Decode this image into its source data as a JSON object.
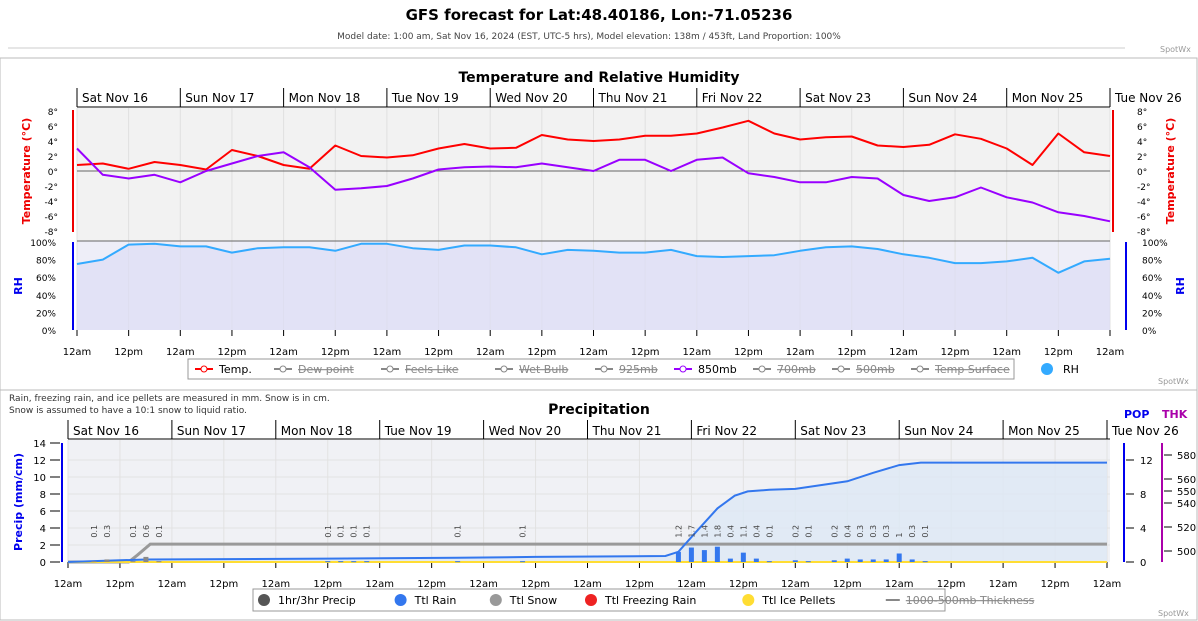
{
  "header": {
    "title": "GFS forecast for Lat:48.40186, Lon:-71.05236",
    "subtitle": "Model date: 1:00 am, Sat Nov 16, 2024 (EST, UTC-5 hrs), Model elevation: 138m / 453ft, Land Proportion: 100%",
    "brand": "SpotWx"
  },
  "notes": [
    "Rain, freezing rain, and ice pellets are measured in mm. Snow is in cm.",
    "Snow is assumed to have a 10:1 snow to liquid ratio."
  ],
  "days": [
    "Sat Nov 16",
    "Sun Nov 17",
    "Mon Nov 18",
    "Tue Nov 19",
    "Wed Nov 20",
    "Thu Nov 21",
    "Fri Nov 22",
    "Sat Nov 23",
    "Sun Nov 24",
    "Mon Nov 25",
    "Tue Nov 26"
  ],
  "time_ticks": [
    "12am",
    "12pm",
    "12am",
    "12pm",
    "12am",
    "12pm",
    "12am",
    "12pm",
    "12am",
    "12pm",
    "12am",
    "12pm",
    "12am",
    "12pm",
    "12am",
    "12pm",
    "12am",
    "12pm",
    "12am",
    "12pm",
    "12am"
  ],
  "colors": {
    "temp": "#ff0000",
    "t850": "#9900ff",
    "rh": "#33aaff",
    "rain": "#3377ee",
    "snow": "#999999",
    "freezing": "#ee2222",
    "ice": "#ffdd33",
    "precip": "#555555",
    "pop": "#0000ff",
    "thk": "#aa00aa"
  },
  "chart_data": [
    {
      "type": "line",
      "title": "Temperature and Relative Humidity",
      "ylabel": "Temperature (°C)",
      "ylabel_right": "Temperature (°C)",
      "ylim": [
        -8,
        8
      ],
      "yticks": [
        "8°",
        "6°",
        "4°",
        "2°",
        "0°",
        "-2°",
        "-4°",
        "-6°",
        "-8°"
      ],
      "rh_label": "RH",
      "rh_ylim": [
        0,
        100
      ],
      "rh_ticks": [
        "100%",
        "80%",
        "60%",
        "40%",
        "20%",
        "0%"
      ],
      "x_hours_step": 6,
      "x_start": "2024-11-16 00:00",
      "series": [
        {
          "name": "Temp.",
          "color": "#ff0000",
          "values": [
            0.8,
            1.0,
            0.3,
            1.2,
            0.8,
            0.2,
            2.8,
            2.0,
            0.8,
            0.3,
            3.4,
            2.0,
            1.8,
            2.1,
            3.0,
            3.6,
            3.0,
            3.1,
            4.8,
            4.2,
            4.0,
            4.2,
            4.7,
            4.7,
            5.0,
            5.8,
            6.7,
            5.0,
            4.2,
            4.5,
            4.6,
            3.4,
            3.2,
            3.5,
            4.9,
            4.3,
            3.0,
            0.8,
            5.0,
            2.5,
            2.0
          ]
        },
        {
          "name": "850mb",
          "color": "#9900ff",
          "values": [
            3.0,
            -0.5,
            -1.0,
            -0.5,
            -1.5,
            0.0,
            1.0,
            2.0,
            2.5,
            0.5,
            -2.5,
            -2.3,
            -2.0,
            -1.0,
            0.2,
            0.5,
            0.6,
            0.5,
            1.0,
            0.5,
            0.0,
            1.5,
            1.5,
            0.0,
            1.5,
            1.8,
            -0.3,
            -0.8,
            -1.5,
            -1.5,
            -0.8,
            -1.0,
            -3.2,
            -4.0,
            -3.5,
            -2.2,
            -3.5,
            -4.2,
            -5.5,
            -6.0,
            -6.7
          ]
        },
        {
          "name": "RH",
          "color": "#33aaff",
          "values": [
            75,
            80,
            97,
            98,
            95,
            95,
            88,
            93,
            94,
            94,
            90,
            98,
            98,
            93,
            91,
            96,
            96,
            94,
            86,
            91,
            90,
            88,
            88,
            91,
            84,
            83,
            84,
            85,
            90,
            94,
            95,
            92,
            86,
            82,
            76,
            76,
            78,
            82,
            65,
            78,
            81
          ]
        }
      ],
      "legend": [
        {
          "label": "Temp.",
          "active": true,
          "color": "#ff0000"
        },
        {
          "label": "Dew point",
          "active": false
        },
        {
          "label": "Feels Like",
          "active": false
        },
        {
          "label": "Wet Bulb",
          "active": false
        },
        {
          "label": "925mb",
          "active": false
        },
        {
          "label": "850mb",
          "active": true,
          "color": "#9900ff"
        },
        {
          "label": "700mb",
          "active": false
        },
        {
          "label": "500mb",
          "active": false
        },
        {
          "label": "Temp Surface",
          "active": false
        },
        {
          "label": "RH",
          "active": true,
          "color": "#33aaff"
        }
      ]
    },
    {
      "type": "line",
      "title": "Precipitation",
      "ylabel": "Precip (mm/cm)",
      "ylim": [
        0,
        14
      ],
      "yticks": [
        "14",
        "12",
        "10",
        "8",
        "6",
        "4",
        "2",
        "0"
      ],
      "pop_label": "POP",
      "pop_ticks": [
        "12",
        "8",
        "4",
        "0"
      ],
      "thk_label": "THK",
      "thk_ticks": [
        "580",
        "560",
        "550",
        "540",
        "520",
        "500"
      ],
      "ttl_rain": [
        [
          0,
          0
        ],
        [
          12,
          0.2
        ],
        [
          18,
          0.3
        ],
        [
          60,
          0.4
        ],
        [
          90,
          0.5
        ],
        [
          108,
          0.6
        ],
        [
          138,
          0.7
        ],
        [
          141,
          1.2
        ],
        [
          145,
          3.5
        ],
        [
          150,
          6.3
        ],
        [
          154,
          7.8
        ],
        [
          157,
          8.3
        ],
        [
          162,
          8.5
        ],
        [
          168,
          8.6
        ],
        [
          180,
          9.5
        ],
        [
          186,
          10.5
        ],
        [
          192,
          11.4
        ],
        [
          197,
          11.7
        ],
        [
          240,
          11.7
        ]
      ],
      "ttl_snow": [
        [
          0,
          0
        ],
        [
          14,
          0
        ],
        [
          16,
          0.8
        ],
        [
          19,
          2.1
        ],
        [
          240,
          2.1
        ]
      ],
      "ttl_ice_pellets": [
        [
          0,
          0
        ],
        [
          240,
          0
        ]
      ],
      "bars": [
        [
          6,
          0.1
        ],
        [
          9,
          0.3
        ],
        [
          15,
          0.1
        ],
        [
          18,
          0.6
        ],
        [
          21,
          0.1
        ],
        [
          60,
          0.1
        ],
        [
          63,
          0.1
        ],
        [
          66,
          0.1
        ],
        [
          69,
          0.1
        ],
        [
          90,
          0.1
        ],
        [
          105,
          0.1
        ],
        [
          141,
          1.2
        ],
        [
          144,
          1.7
        ],
        [
          147,
          1.4
        ],
        [
          150,
          1.8
        ],
        [
          153,
          0.4
        ],
        [
          156,
          1.1
        ],
        [
          159,
          0.4
        ],
        [
          162,
          0.1
        ],
        [
          168,
          0.2
        ],
        [
          171,
          0.1
        ],
        [
          177,
          0.2
        ],
        [
          180,
          0.4
        ],
        [
          183,
          0.3
        ],
        [
          186,
          0.3
        ],
        [
          189,
          0.3
        ],
        [
          192,
          1
        ],
        [
          195,
          0.3
        ],
        [
          198,
          0.1
        ]
      ],
      "legend": [
        {
          "label": "1hr/3hr Precip",
          "active": true,
          "color": "#555555"
        },
        {
          "label": "Ttl Rain",
          "active": true,
          "color": "#3377ee"
        },
        {
          "label": "Ttl Snow",
          "active": true,
          "color": "#999999"
        },
        {
          "label": "Ttl Freezing Rain",
          "active": true,
          "color": "#ee2222"
        },
        {
          "label": "Ttl Ice Pellets",
          "active": true,
          "color": "#ffdd33"
        },
        {
          "label": "1000-500mb Thickness",
          "active": false
        }
      ]
    }
  ]
}
